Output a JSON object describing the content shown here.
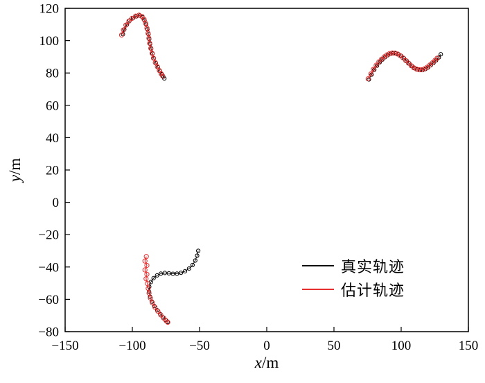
{
  "chart_data": {
    "type": "line",
    "title": "",
    "xlabel": {
      "variable": "x",
      "unit": "/m"
    },
    "ylabel": {
      "variable": "y",
      "unit": "/m"
    },
    "xlim": [
      -150,
      150
    ],
    "ylim": [
      -80,
      120
    ],
    "xticks": [
      -150,
      -100,
      -50,
      0,
      50,
      100,
      150
    ],
    "yticks": [
      -80,
      -60,
      -40,
      -20,
      0,
      20,
      40,
      60,
      80,
      100,
      120
    ],
    "grid": false,
    "axis_color": "#000000",
    "legend": {
      "position": "lower-right",
      "entries": [
        {
          "label": "真实轨迹",
          "color": "#000000"
        },
        {
          "label": "估计轨迹",
          "color": "#e62e2e"
        }
      ]
    },
    "series": [
      {
        "name": "true-trajectory-target1",
        "role": "true",
        "color": "#000000",
        "marker_radius": 2.6,
        "line_width": 0.9,
        "points": [
          [
            -107,
            104
          ],
          [
            -106,
            107
          ],
          [
            -104,
            110
          ],
          [
            -102,
            112.5
          ],
          [
            -99.5,
            114
          ],
          [
            -97,
            115
          ],
          [
            -94.5,
            115.5
          ],
          [
            -92.5,
            114.5
          ],
          [
            -91,
            112.5
          ],
          [
            -89.8,
            110
          ],
          [
            -88.8,
            107
          ],
          [
            -88,
            104
          ],
          [
            -87.4,
            101
          ],
          [
            -86.8,
            98
          ],
          [
            -86,
            95
          ],
          [
            -85,
            92
          ],
          [
            -84,
            89
          ],
          [
            -82.5,
            86.2
          ],
          [
            -81,
            83.6
          ],
          [
            -79.5,
            81.2
          ],
          [
            -78,
            79.2
          ],
          [
            -77,
            77.8
          ],
          [
            -76.2,
            76.6
          ]
        ]
      },
      {
        "name": "estimated-trajectory-target1",
        "role": "estimate",
        "color": "#e62e2e",
        "marker_radius": 3.1,
        "line_width": 1.1,
        "points": [
          [
            -108,
            103.5
          ],
          [
            -106.6,
            106.6
          ],
          [
            -104.8,
            109.6
          ],
          [
            -102.6,
            112
          ],
          [
            -100.2,
            113.8
          ],
          [
            -97.6,
            115.2
          ],
          [
            -95,
            115.8
          ],
          [
            -92.8,
            115
          ],
          [
            -91.3,
            113.2
          ],
          [
            -90.1,
            110.7
          ],
          [
            -89.1,
            107.7
          ],
          [
            -88.3,
            104.6
          ],
          [
            -87.7,
            101.5
          ],
          [
            -87.1,
            98.4
          ],
          [
            -86.3,
            95.3
          ],
          [
            -85.3,
            92.2
          ],
          [
            -84.3,
            89.2
          ],
          [
            -82.9,
            86.4
          ],
          [
            -81.4,
            83.9
          ],
          [
            -79.9,
            81.5
          ],
          [
            -78.5,
            79.5
          ],
          [
            -77.4,
            78.1
          ]
        ]
      },
      {
        "name": "true-trajectory-target2",
        "role": "true",
        "color": "#000000",
        "marker_radius": 2.6,
        "line_width": 0.9,
        "points": [
          [
            76,
            76
          ],
          [
            78,
            79
          ],
          [
            80,
            82
          ],
          [
            82,
            84.5
          ],
          [
            84,
            86.6
          ],
          [
            86,
            88.3
          ],
          [
            88,
            89.8
          ],
          [
            90,
            91
          ],
          [
            92,
            91.8
          ],
          [
            94,
            92.2
          ],
          [
            96,
            92.2
          ],
          [
            98,
            91.6
          ],
          [
            100,
            90.6
          ],
          [
            102,
            89.2
          ],
          [
            104,
            87.6
          ],
          [
            106,
            86
          ],
          [
            108,
            84.4
          ],
          [
            110,
            83
          ],
          [
            112,
            82.2
          ],
          [
            114,
            81.8
          ],
          [
            116,
            81.8
          ],
          [
            118,
            82.4
          ],
          [
            120,
            83.4
          ],
          [
            122,
            84.8
          ],
          [
            124,
            86.2
          ],
          [
            126,
            87.8
          ],
          [
            128,
            89.6
          ],
          [
            129.5,
            91.6
          ]
        ]
      },
      {
        "name": "estimated-trajectory-target2",
        "role": "estimate",
        "color": "#e62e2e",
        "marker_radius": 3.1,
        "line_width": 1.1,
        "points": [
          [
            75.4,
            76.4
          ],
          [
            77.4,
            79.4
          ],
          [
            79.4,
            82.3
          ],
          [
            81.4,
            84.8
          ],
          [
            83.4,
            86.9
          ],
          [
            85.4,
            88.6
          ],
          [
            87.4,
            90
          ],
          [
            89.4,
            91.2
          ],
          [
            91.4,
            92
          ],
          [
            93.4,
            92.4
          ],
          [
            95.4,
            92.3
          ],
          [
            97.4,
            91.7
          ],
          [
            99.4,
            90.7
          ],
          [
            101.4,
            89.3
          ],
          [
            103.4,
            87.7
          ],
          [
            105.4,
            86.1
          ],
          [
            107.4,
            84.5
          ],
          [
            109.4,
            83.2
          ],
          [
            111.4,
            82.4
          ],
          [
            113.4,
            82
          ],
          [
            115.4,
            82
          ],
          [
            117.4,
            82.6
          ],
          [
            119.4,
            83.6
          ],
          [
            121.4,
            85
          ],
          [
            123.4,
            86.4
          ],
          [
            125.2,
            87.9
          ],
          [
            126.8,
            89.2
          ]
        ]
      },
      {
        "name": "true-trajectory-target3",
        "role": "true",
        "color": "#000000",
        "marker_radius": 2.6,
        "line_width": 0.9,
        "points": [
          [
            -51,
            -30
          ],
          [
            -51.8,
            -33
          ],
          [
            -53.2,
            -36
          ],
          [
            -55.2,
            -38.8
          ],
          [
            -57.8,
            -41
          ],
          [
            -60.8,
            -42.6
          ],
          [
            -63.8,
            -43.6
          ],
          [
            -66.8,
            -44.1
          ],
          [
            -69.8,
            -44.2
          ],
          [
            -72.8,
            -43.9
          ],
          [
            -75.8,
            -43.7
          ],
          [
            -78.8,
            -44.1
          ],
          [
            -81.6,
            -45.2
          ],
          [
            -84.2,
            -46.9
          ],
          [
            -86.2,
            -49.3
          ],
          [
            -87.4,
            -52.2
          ],
          [
            -87.6,
            -55.3
          ],
          [
            -86.8,
            -58.4
          ],
          [
            -85.4,
            -61.4
          ],
          [
            -83.6,
            -64.2
          ],
          [
            -81.5,
            -66.8
          ],
          [
            -79.3,
            -69.1
          ],
          [
            -77.2,
            -71.1
          ],
          [
            -75.3,
            -72.8
          ],
          [
            -73.8,
            -74
          ]
        ]
      },
      {
        "name": "estimated-trajectory-target3",
        "role": "estimate",
        "color": "#e62e2e",
        "marker_radius": 3.1,
        "line_width": 1.1,
        "points": [
          [
            -89.6,
            -33.5
          ],
          [
            -90.6,
            -36.3
          ],
          [
            -89.2,
            -39
          ],
          [
            -90.6,
            -41.8
          ],
          [
            -89.2,
            -44.5
          ],
          [
            -89.8,
            -47.3
          ],
          [
            -88.8,
            -50.2
          ],
          [
            -88.2,
            -53.2
          ],
          [
            -87.6,
            -56.2
          ],
          [
            -86.6,
            -59.2
          ],
          [
            -85.1,
            -62.1
          ],
          [
            -83.2,
            -64.9
          ],
          [
            -81,
            -67.4
          ],
          [
            -78.8,
            -69.7
          ],
          [
            -76.7,
            -71.6
          ],
          [
            -74.9,
            -73.2
          ],
          [
            -73.6,
            -74.2
          ]
        ]
      }
    ]
  }
}
